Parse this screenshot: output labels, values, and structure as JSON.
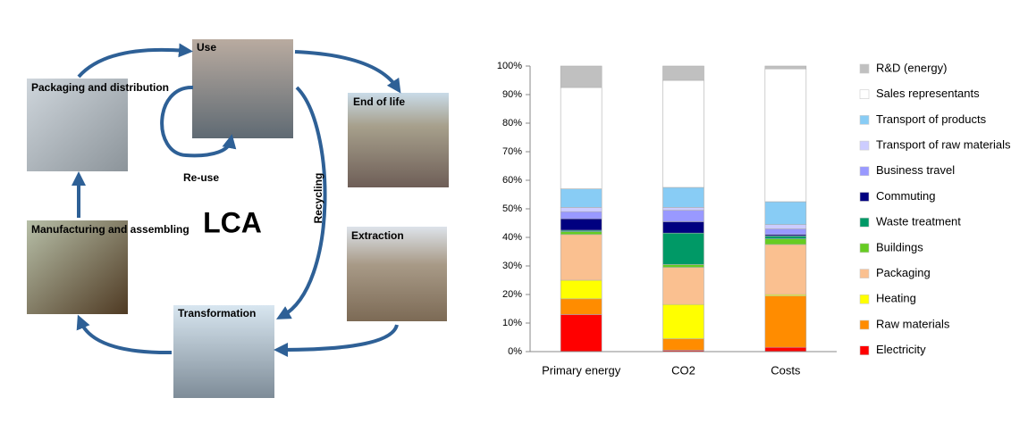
{
  "diagram": {
    "center": "LCA",
    "stages": [
      "Use",
      "Packaging and distribution",
      "End of life",
      "Manufacturing and assembling",
      "Extraction",
      "Transformation"
    ],
    "edge_labels": [
      "Re-use",
      "Recycling"
    ]
  },
  "chart_data": {
    "type": "stacked_bar",
    "categories": [
      "Primary energy",
      "CO2",
      "Costs"
    ],
    "series": [
      {
        "name": "Electricity",
        "color": "#ff0000",
        "values": [
          13,
          0.5,
          1.5
        ]
      },
      {
        "name": "Raw materials",
        "color": "#ff8c00",
        "values": [
          5.5,
          4,
          18
        ]
      },
      {
        "name": "Heating",
        "color": "#ffff00",
        "values": [
          6.5,
          12,
          0.5
        ]
      },
      {
        "name": "Packaging",
        "color": "#fac090",
        "values": [
          16,
          13,
          17.5
        ]
      },
      {
        "name": "Buildings",
        "color": "#66cc22",
        "values": [
          1,
          1,
          2
        ]
      },
      {
        "name": "Waste treatment",
        "color": "#009966",
        "values": [
          0.5,
          11,
          1
        ]
      },
      {
        "name": "Commuting",
        "color": "#000080",
        "values": [
          4,
          4,
          0.5
        ]
      },
      {
        "name": "Business travel",
        "color": "#9999ff",
        "values": [
          2.5,
          4,
          2
        ]
      },
      {
        "name": "Transport of raw materials",
        "color": "#ccccff",
        "values": [
          1.5,
          1,
          1.5
        ]
      },
      {
        "name": "Transport of products",
        "color": "#88ccf5",
        "values": [
          6.5,
          7,
          8
        ]
      },
      {
        "name": "Sales representants",
        "color": "#ffffff",
        "values": [
          35.5,
          37.5,
          46.5
        ]
      },
      {
        "name": "R&D (energy)",
        "color": "#c0c0c0",
        "values": [
          7.5,
          5,
          1
        ]
      }
    ],
    "ylim": [
      0,
      100
    ],
    "yticks": [
      {
        "value": 0,
        "label": "0%"
      },
      {
        "value": 10,
        "label": "10%"
      },
      {
        "value": 20,
        "label": "20%"
      },
      {
        "value": 30,
        "label": "30%"
      },
      {
        "value": 40,
        "label": "40%"
      },
      {
        "value": 50,
        "label": "50%"
      },
      {
        "value": 60,
        "label": "60%"
      },
      {
        "value": 70,
        "label": "70%"
      },
      {
        "value": 80,
        "label": "80%"
      },
      {
        "value": 90,
        "label": "90%"
      },
      {
        "value": 100,
        "label": "100%"
      }
    ],
    "grid": false,
    "legend": "right"
  }
}
